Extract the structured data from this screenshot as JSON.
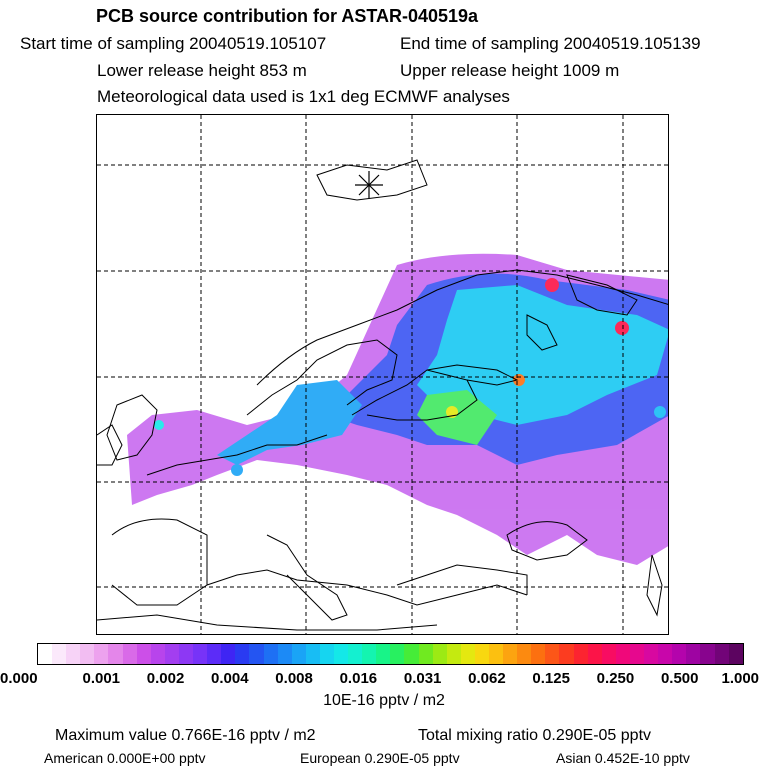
{
  "header": {
    "title": "PCB source contribution for ASTAR-040519a",
    "start_time": "Start time of sampling 20040519.105107",
    "end_time": "End time of sampling 20040519.105139",
    "lower_height": "Lower release height  853 m",
    "upper_height": "Upper release height 1009 m",
    "met_data": "Meteorological data used is 1x1 deg ECMWF analyses"
  },
  "legend": {
    "ticks": [
      "0.000",
      "0.001",
      "0.002",
      "0.004",
      "0.008",
      "0.016",
      "0.031",
      "0.062",
      "0.125",
      "0.250",
      "0.500",
      "1.000"
    ],
    "unit": "10E-16 pptv / m2",
    "colors": [
      "#ffffff",
      "#fbe9fb",
      "#f7d3f7",
      "#f2bdf2",
      "#eda2ee",
      "#e486ea",
      "#d96ae8",
      "#cc4fe8",
      "#b844ec",
      "#a33ef0",
      "#8d38f4",
      "#7733f8",
      "#5c2cf8",
      "#3f25f4",
      "#2a3bf2",
      "#2455f2",
      "#1e70f4",
      "#1c8af6",
      "#1aa4f6",
      "#18bdf4",
      "#16d5f0",
      "#14e8e8",
      "#14f0d0",
      "#14f4b0",
      "#18f488",
      "#28f060",
      "#46ec38",
      "#70ea20",
      "#9cea14",
      "#c4ea10",
      "#e4e810",
      "#f8d810",
      "#fcc010",
      "#fca410",
      "#fc8a10",
      "#fc7010",
      "#fc5618",
      "#fc3c20",
      "#fc2430",
      "#fc1448",
      "#f80c62",
      "#f0087a",
      "#e6088e",
      "#d808a0",
      "#c806aa",
      "#b404ac",
      "#9e04a2",
      "#88048e",
      "#720478",
      "#5c0460"
    ]
  },
  "summary": {
    "max_value": "Maximum value  0.766E-16 pptv / m2",
    "total_mixing": "Total mixing ratio  0.290E-05 pptv",
    "american": "American  0.000E+00 pptv",
    "european": "European  0.290E-05 pptv",
    "asian": "Asian  0.452E-10 pptv"
  }
}
